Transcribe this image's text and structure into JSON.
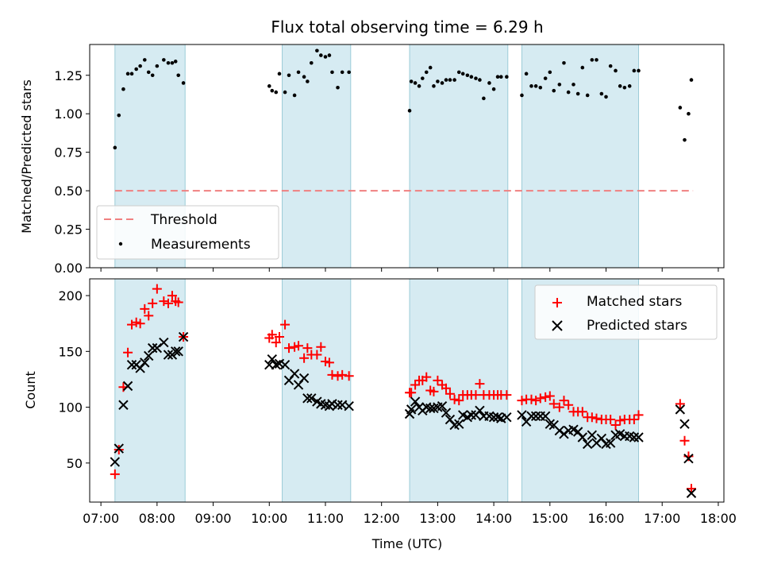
{
  "chart_data": [
    {
      "type": "scatter",
      "panel": "top",
      "title": "Flux total observing time = 6.29 h",
      "xlabel": "",
      "ylabel": "Matched/Predicted stars",
      "ylim": [
        0,
        1.45
      ],
      "yticks": [
        0.0,
        0.25,
        0.5,
        0.75,
        1.0,
        1.25
      ],
      "ytick_labels": [
        "0.00",
        "0.25",
        "0.50",
        "0.75",
        "1.00",
        "1.25"
      ],
      "legend": {
        "placement": "lower-left",
        "entries": [
          "Threshold",
          "Measurements"
        ]
      },
      "threshold": {
        "name": "Threshold",
        "y": 0.5,
        "x_start": 7.25,
        "x_end": 17.55,
        "color": "#f08080"
      },
      "series": [
        {
          "name": "Measurements",
          "color": "#000000",
          "x": [
            7.25,
            7.32,
            7.4,
            7.48,
            7.55,
            7.63,
            7.7,
            7.78,
            7.85,
            7.92,
            8.0,
            8.12,
            8.2,
            8.27,
            8.33,
            8.38,
            8.47,
            10.0,
            10.05,
            10.12,
            10.18,
            10.28,
            10.35,
            10.45,
            10.52,
            10.62,
            10.68,
            10.75,
            10.85,
            10.92,
            11.0,
            11.07,
            11.12,
            11.22,
            11.3,
            11.42,
            12.5,
            12.53,
            12.6,
            12.67,
            12.73,
            12.8,
            12.87,
            12.93,
            13.0,
            13.08,
            13.15,
            13.22,
            13.3,
            13.38,
            13.45,
            13.53,
            13.6,
            13.68,
            13.75,
            13.82,
            13.92,
            14.0,
            14.07,
            14.13,
            14.23,
            14.5,
            14.58,
            14.67,
            14.75,
            14.83,
            14.92,
            15.0,
            15.07,
            15.17,
            15.25,
            15.33,
            15.42,
            15.5,
            15.58,
            15.67,
            15.75,
            15.83,
            15.92,
            16.0,
            16.08,
            16.17,
            16.25,
            16.33,
            16.42,
            16.5,
            16.58,
            17.32,
            17.4,
            17.47,
            17.52
          ],
          "y": [
            0.78,
            0.99,
            1.16,
            1.26,
            1.26,
            1.29,
            1.31,
            1.35,
            1.27,
            1.25,
            1.31,
            1.35,
            1.33,
            1.33,
            1.34,
            1.25,
            1.2,
            1.18,
            1.15,
            1.14,
            1.26,
            1.14,
            1.25,
            1.12,
            1.27,
            1.24,
            1.21,
            1.33,
            1.41,
            1.38,
            1.37,
            1.38,
            1.27,
            1.17,
            1.27,
            1.27,
            1.02,
            1.21,
            1.2,
            1.18,
            1.23,
            1.27,
            1.3,
            1.18,
            1.21,
            1.2,
            1.22,
            1.22,
            1.22,
            1.27,
            1.26,
            1.25,
            1.24,
            1.23,
            1.22,
            1.1,
            1.2,
            1.16,
            1.24,
            1.24,
            1.24,
            1.12,
            1.26,
            1.18,
            1.18,
            1.17,
            1.23,
            1.27,
            1.15,
            1.19,
            1.33,
            1.14,
            1.19,
            1.13,
            1.3,
            1.12,
            1.35,
            1.35,
            1.13,
            1.11,
            1.31,
            1.28,
            1.18,
            1.17,
            1.18,
            1.28,
            1.28,
            1.04,
            0.83,
            1.0,
            1.22
          ]
        }
      ]
    },
    {
      "type": "scatter",
      "panel": "bottom",
      "title": "",
      "xlabel": "Time (UTC)",
      "ylabel": "Count",
      "ylim": [
        15,
        215
      ],
      "yticks": [
        50,
        100,
        150,
        200
      ],
      "ytick_labels": [
        "50",
        "100",
        "150",
        "200"
      ],
      "legend": {
        "placement": "top-right",
        "entries": [
          "Matched stars",
          "Predicted stars"
        ]
      },
      "series": [
        {
          "name": "Matched stars",
          "marker": "plus",
          "color": "#ff0000",
          "x": [
            7.25,
            7.32,
            7.4,
            7.48,
            7.55,
            7.63,
            7.7,
            7.78,
            7.85,
            7.92,
            8.0,
            8.12,
            8.2,
            8.27,
            8.33,
            8.38,
            8.47,
            10.0,
            10.05,
            10.12,
            10.18,
            10.28,
            10.35,
            10.45,
            10.52,
            10.62,
            10.68,
            10.75,
            10.85,
            10.92,
            11.0,
            11.07,
            11.12,
            11.22,
            11.3,
            11.42,
            12.5,
            12.53,
            12.6,
            12.67,
            12.73,
            12.8,
            12.87,
            12.93,
            13.0,
            13.08,
            13.15,
            13.22,
            13.3,
            13.38,
            13.45,
            13.53,
            13.6,
            13.68,
            13.75,
            13.82,
            13.92,
            14.0,
            14.07,
            14.13,
            14.23,
            14.5,
            14.58,
            14.67,
            14.75,
            14.83,
            14.92,
            15.0,
            15.07,
            15.17,
            15.25,
            15.33,
            15.42,
            15.5,
            15.58,
            15.67,
            15.75,
            15.83,
            15.92,
            16.0,
            16.08,
            16.17,
            16.25,
            16.33,
            16.42,
            16.5,
            16.58,
            17.32,
            17.4,
            17.47,
            17.52
          ],
          "y": [
            40,
            62,
            118,
            149,
            174,
            176,
            175,
            188,
            182,
            193,
            206,
            195,
            193,
            200,
            195,
            194,
            163,
            162,
            165,
            158,
            163,
            174,
            153,
            154,
            155,
            144,
            153,
            147,
            147,
            154,
            141,
            140,
            129,
            128,
            129,
            128,
            113,
            113,
            120,
            124,
            124,
            127,
            115,
            114,
            124,
            120,
            117,
            112,
            107,
            106,
            111,
            111,
            111,
            111,
            121,
            111,
            111,
            111,
            111,
            111,
            111,
            106,
            107,
            107,
            106,
            108,
            109,
            110,
            103,
            100,
            106,
            102,
            96,
            96,
            96,
            91,
            91,
            90,
            89,
            89,
            89,
            84,
            88,
            89,
            89,
            89,
            93,
            103,
            70,
            56,
            27
          ]
        },
        {
          "name": "Predicted stars",
          "marker": "x",
          "color": "#000000",
          "x": [
            7.25,
            7.32,
            7.4,
            7.48,
            7.55,
            7.63,
            7.7,
            7.78,
            7.85,
            7.92,
            8.0,
            8.12,
            8.2,
            8.27,
            8.33,
            8.38,
            8.47,
            10.0,
            10.05,
            10.12,
            10.18,
            10.28,
            10.35,
            10.45,
            10.52,
            10.62,
            10.68,
            10.75,
            10.85,
            10.92,
            11.0,
            11.07,
            11.12,
            11.22,
            11.3,
            11.42,
            12.5,
            12.53,
            12.6,
            12.67,
            12.73,
            12.8,
            12.87,
            12.93,
            13.0,
            13.08,
            13.15,
            13.22,
            13.3,
            13.38,
            13.45,
            13.53,
            13.6,
            13.68,
            13.75,
            13.82,
            13.92,
            14.0,
            14.07,
            14.13,
            14.23,
            14.5,
            14.58,
            14.67,
            14.75,
            14.83,
            14.92,
            15.0,
            15.07,
            15.17,
            15.25,
            15.33,
            15.42,
            15.5,
            15.58,
            15.67,
            15.75,
            15.83,
            15.92,
            16.0,
            16.08,
            16.17,
            16.25,
            16.33,
            16.42,
            16.5,
            16.58,
            17.32,
            17.4,
            17.47,
            17.52
          ],
          "y": [
            51,
            63,
            102,
            119,
            138,
            138,
            135,
            140,
            146,
            153,
            153,
            158,
            147,
            147,
            150,
            150,
            163,
            138,
            143,
            138,
            139,
            138,
            124,
            130,
            120,
            126,
            108,
            108,
            105,
            103,
            102,
            101,
            103,
            102,
            102,
            101,
            94,
            98,
            105,
            100,
            97,
            100,
            99,
            99,
            100,
            101,
            95,
            89,
            84,
            85,
            93,
            91,
            93,
            93,
            97,
            92,
            92,
            91,
            91,
            90,
            91,
            93,
            87,
            92,
            92,
            92,
            92,
            85,
            84,
            79,
            76,
            79,
            80,
            78,
            73,
            67,
            75,
            68,
            72,
            67,
            68,
            75,
            76,
            74,
            74,
            73,
            73,
            98,
            85,
            54,
            23
          ]
        }
      ],
      "observing_windows": [
        {
          "start": 7.25,
          "end": 8.5
        },
        {
          "start": 10.23,
          "end": 11.45
        },
        {
          "start": 12.5,
          "end": 14.25
        },
        {
          "start": 14.5,
          "end": 16.58
        }
      ],
      "x_axis": {
        "range": [
          6.8,
          18.1
        ],
        "ticks": [
          7,
          8,
          9,
          10,
          11,
          12,
          13,
          14,
          15,
          16,
          17,
          18
        ],
        "tick_labels": [
          "07:00",
          "08:00",
          "09:00",
          "10:00",
          "11:00",
          "12:00",
          "13:00",
          "14:00",
          "15:00",
          "16:00",
          "17:00",
          "18:00"
        ]
      }
    }
  ]
}
